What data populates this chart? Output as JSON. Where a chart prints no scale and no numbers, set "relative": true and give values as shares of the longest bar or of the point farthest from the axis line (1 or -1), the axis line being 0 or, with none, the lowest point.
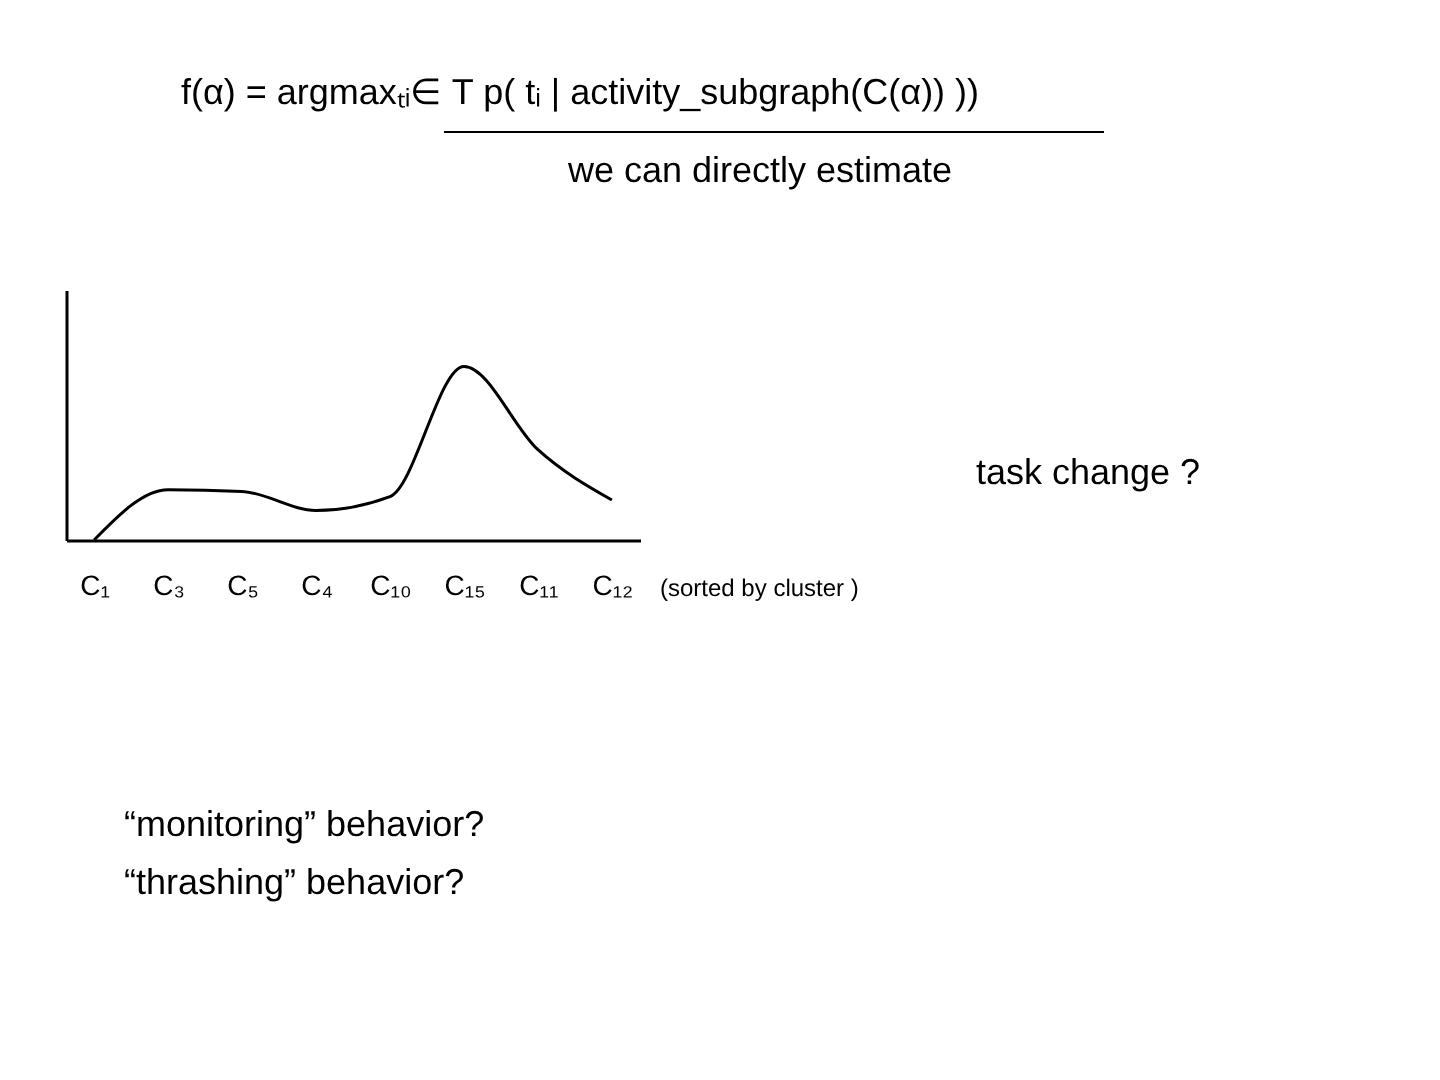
{
  "chart_data": {
    "type": "line",
    "relative": true,
    "title": "f(α) = argmaxₜᵢ∈ T p( tᵢ | activity_subgraph(C(α)) ))",
    "categories": [
      "C₁",
      "C₃",
      "C₅",
      "C₄",
      "C₁₀",
      "C₁₅",
      "C₁₁",
      "C₁₂"
    ],
    "series": [
      {
        "color": "#000000",
        "values": [
          0,
          0.29,
          0.28,
          0.17,
          0.25,
          1.0,
          0.52,
          0.23
        ]
      }
    ],
    "annotations": [
      "we can directly estimate",
      "task change ?",
      "(sorted by cluster )",
      "“monitoring” behavior?",
      "“thrashing” behavior?"
    ],
    "grid": false,
    "marker": "none",
    "line_style": "solid"
  }
}
